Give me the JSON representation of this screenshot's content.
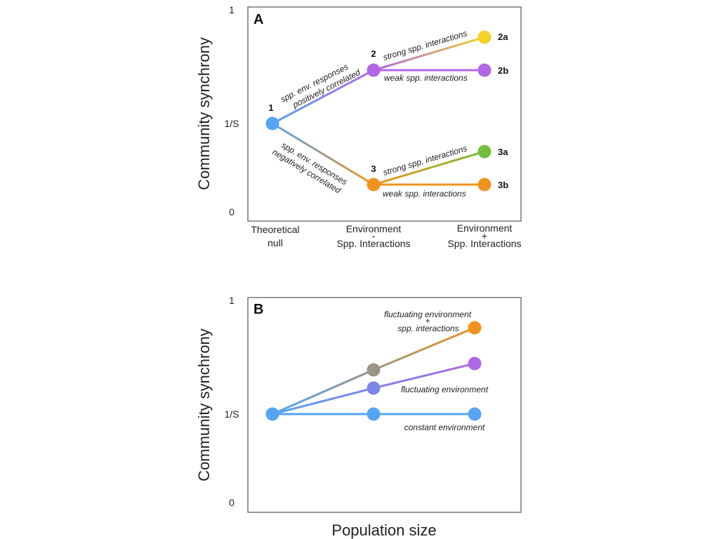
{
  "colors": {
    "blue": "#55a5f2",
    "purple": "#b067e6",
    "yellow": "#f4d327",
    "green": "#74bf3c",
    "orange": "#f0921e",
    "taupe": "#9b9585",
    "periwinkle": "#7c87e8"
  },
  "panel_a": {
    "label": "A",
    "y_axis_title": "Community synchrony",
    "y_ticks": {
      "top": "1",
      "mid": "1/S",
      "bottom": "0"
    },
    "categories": [
      {
        "line1": "Theoretical",
        "line2": "null",
        "line3": ""
      },
      {
        "line1": "Environment",
        "line2": "-",
        "line3": "Spp. Interactions"
      },
      {
        "line1": "Environment",
        "line2": "+",
        "line3": "Spp. Interactions"
      }
    ],
    "point_labels": [
      "1",
      "2",
      "3",
      "2a",
      "2b",
      "3a",
      "3b"
    ],
    "annotations": {
      "pos_line1": "spp. env. responses",
      "pos_line2": "positively correlated",
      "neg_line1": "spp. env. responses",
      "neg_line2": "negatively correlated",
      "strong_upper": "strong spp. interactions",
      "weak_upper": "weak spp. interactions",
      "strong_lower": "strong spp. interactions",
      "weak_lower": "weak spp. interactions"
    }
  },
  "panel_b": {
    "label": "B",
    "y_axis_title": "Community synchrony",
    "x_axis_title": "Population size",
    "y_ticks": {
      "top": "1",
      "mid": "1/S",
      "bottom": "0"
    },
    "annotations": {
      "fluct_spp_line1": "fluctuating environment",
      "fluct_spp_line2": "+",
      "fluct_spp_line3": "spp. interactions",
      "fluct": "fluctuating environment",
      "constant": "constant environment"
    }
  }
}
